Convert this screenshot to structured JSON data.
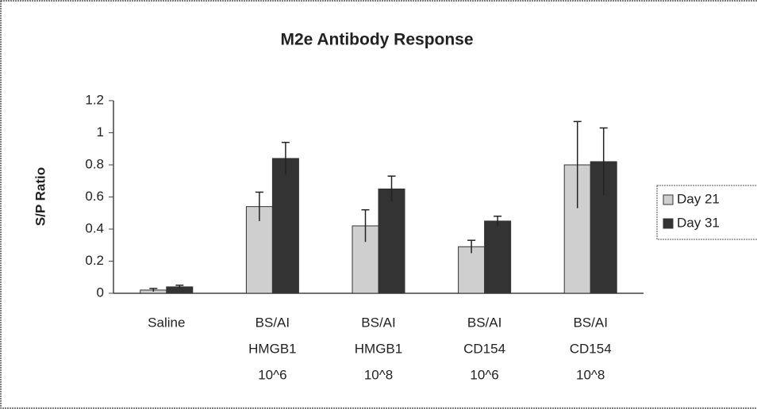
{
  "chart_data": {
    "type": "bar",
    "title": "M2e Antibody Response",
    "y_label": "S/P Ratio",
    "categories": [
      [
        "Saline"
      ],
      [
        "BS/AI",
        "HMGB1",
        "10^6"
      ],
      [
        "BS/AI",
        "HMGB1",
        "10^8"
      ],
      [
        "BS/AI",
        "CD154",
        "10^6"
      ],
      [
        "BS/AI",
        "CD154",
        "10^8"
      ]
    ],
    "series": [
      {
        "name": "Day 21",
        "color": "#cfcfcf",
        "values": [
          0.02,
          0.54,
          0.42,
          0.29,
          0.8
        ],
        "errors": [
          0.01,
          0.09,
          0.1,
          0.04,
          0.27
        ]
      },
      {
        "name": "Day 31",
        "color": "#333333",
        "values": [
          0.04,
          0.84,
          0.65,
          0.45,
          0.82
        ],
        "errors": [
          0.01,
          0.1,
          0.08,
          0.03,
          0.21
        ]
      }
    ],
    "ylim": [
      0,
      1.2
    ],
    "yticks": [
      0,
      0.2,
      0.4,
      0.6,
      0.8,
      1,
      1.2
    ],
    "grid": false,
    "legend": "right"
  }
}
